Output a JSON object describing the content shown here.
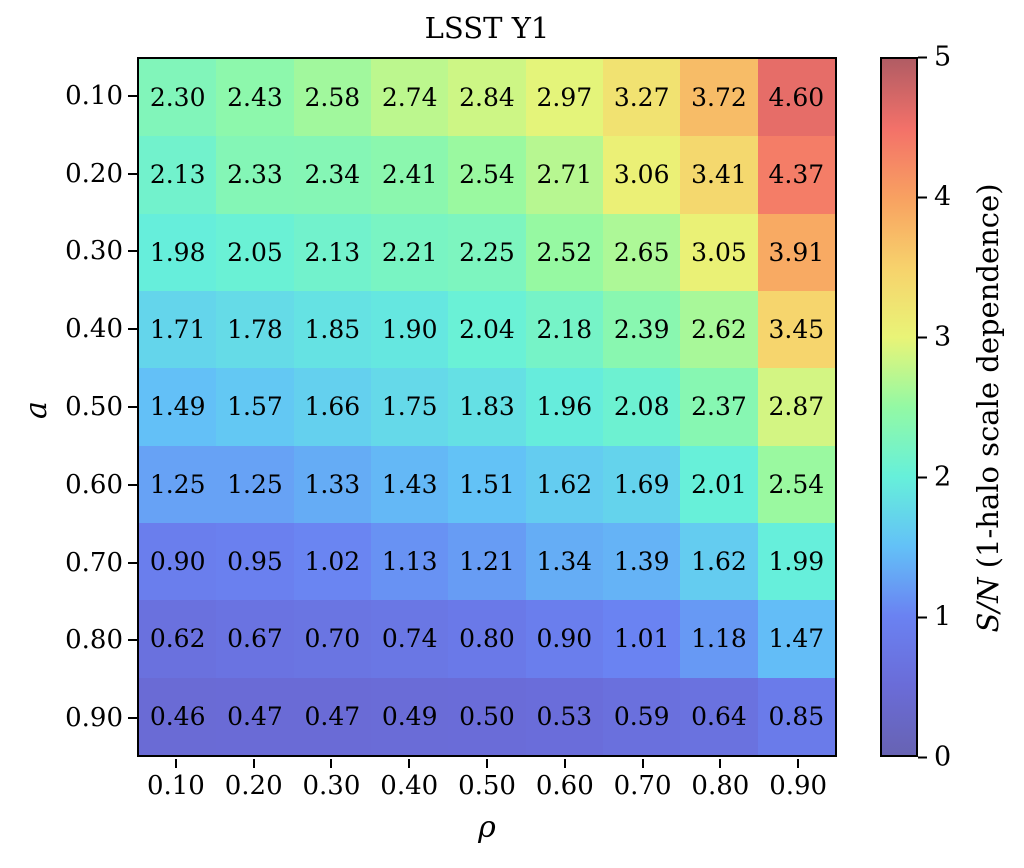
{
  "title": "LSST Y1",
  "chart_data": {
    "type": "heatmap",
    "title": "LSST Y1",
    "xlabel": "ρ",
    "ylabel": "a",
    "x_categories": [
      "0.10",
      "0.20",
      "0.30",
      "0.40",
      "0.50",
      "0.60",
      "0.70",
      "0.80",
      "0.90"
    ],
    "y_categories": [
      "0.10",
      "0.20",
      "0.30",
      "0.40",
      "0.50",
      "0.60",
      "0.70",
      "0.80",
      "0.90"
    ],
    "values": [
      [
        2.3,
        2.43,
        2.58,
        2.74,
        2.84,
        2.97,
        3.27,
        3.72,
        4.6
      ],
      [
        2.13,
        2.33,
        2.34,
        2.41,
        2.54,
        2.71,
        3.06,
        3.41,
        4.37
      ],
      [
        1.98,
        2.05,
        2.13,
        2.21,
        2.25,
        2.52,
        2.65,
        3.05,
        3.91
      ],
      [
        1.71,
        1.78,
        1.85,
        1.9,
        2.04,
        2.18,
        2.39,
        2.62,
        3.45
      ],
      [
        1.49,
        1.57,
        1.66,
        1.75,
        1.83,
        1.96,
        2.08,
        2.37,
        2.87
      ],
      [
        1.25,
        1.25,
        1.33,
        1.43,
        1.51,
        1.62,
        1.69,
        2.01,
        2.54
      ],
      [
        0.9,
        0.95,
        1.02,
        1.13,
        1.21,
        1.34,
        1.39,
        1.62,
        1.99
      ],
      [
        0.62,
        0.67,
        0.7,
        0.74,
        0.8,
        0.9,
        1.01,
        1.18,
        1.47
      ],
      [
        0.46,
        0.47,
        0.47,
        0.49,
        0.5,
        0.53,
        0.59,
        0.64,
        0.85
      ]
    ],
    "value_format_decimals": 2,
    "vmin": 0,
    "vmax": 5,
    "grid": false,
    "cell_text_color": "#000000",
    "border_color": "#000000",
    "colormap_stops": [
      {
        "v": 0.0,
        "c": "#6763b3"
      },
      {
        "v": 0.5,
        "c": "#6a6cd8"
      },
      {
        "v": 1.0,
        "c": "#6a82f2"
      },
      {
        "v": 1.5,
        "c": "#63c1f7"
      },
      {
        "v": 2.0,
        "c": "#66f0da"
      },
      {
        "v": 2.5,
        "c": "#93f9a4"
      },
      {
        "v": 3.0,
        "c": "#e9f477"
      },
      {
        "v": 3.5,
        "c": "#f7d26c"
      },
      {
        "v": 4.0,
        "c": "#f8a161"
      },
      {
        "v": 4.5,
        "c": "#f37169"
      },
      {
        "v": 5.0,
        "c": "#b15c64"
      }
    ]
  },
  "colorbar": {
    "label_math": "S/N",
    "label_rest": " (1-halo scale dependence)",
    "ticks": [
      {
        "label": "0",
        "value": 0
      },
      {
        "label": "1",
        "value": 1
      },
      {
        "label": "2",
        "value": 2
      },
      {
        "label": "3",
        "value": 3
      },
      {
        "label": "4",
        "value": 4
      },
      {
        "label": "5",
        "value": 5
      }
    ]
  }
}
